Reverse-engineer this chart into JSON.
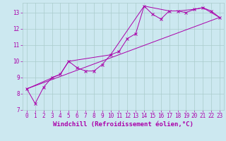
{
  "title": "",
  "xlabel": "Windchill (Refroidissement éolien,°C)",
  "ylabel": "",
  "background_color": "#cce8f0",
  "grid_color": "#aacccc",
  "line_color": "#aa00aa",
  "xlim": [
    -0.5,
    23.5
  ],
  "ylim": [
    7.0,
    13.6
  ],
  "yticks": [
    7,
    8,
    9,
    10,
    11,
    12,
    13
  ],
  "xticks": [
    0,
    1,
    2,
    3,
    4,
    5,
    6,
    7,
    8,
    9,
    10,
    11,
    12,
    13,
    14,
    15,
    16,
    17,
    18,
    19,
    20,
    21,
    22,
    23
  ],
  "series1_x": [
    0,
    1,
    2,
    3,
    4,
    5,
    6,
    7,
    8,
    9,
    10,
    11,
    12,
    13,
    14,
    15,
    16,
    17,
    18,
    19,
    20,
    21,
    22,
    23
  ],
  "series1_y": [
    8.3,
    7.4,
    8.4,
    9.0,
    9.2,
    10.0,
    9.6,
    9.4,
    9.4,
    9.8,
    10.4,
    10.6,
    11.4,
    11.7,
    13.4,
    12.9,
    12.6,
    13.1,
    13.1,
    13.0,
    13.2,
    13.3,
    13.1,
    12.7
  ],
  "series2_x": [
    0,
    4,
    5,
    10,
    14,
    17,
    18,
    20,
    21,
    23
  ],
  "series2_y": [
    8.3,
    9.2,
    10.0,
    10.4,
    13.4,
    13.1,
    13.1,
    13.2,
    13.3,
    12.7
  ],
  "series3_x": [
    0,
    23
  ],
  "series3_y": [
    8.3,
    12.7
  ],
  "font_color": "#aa00aa",
  "tick_fontsize": 5.5,
  "label_fontsize": 6.5
}
